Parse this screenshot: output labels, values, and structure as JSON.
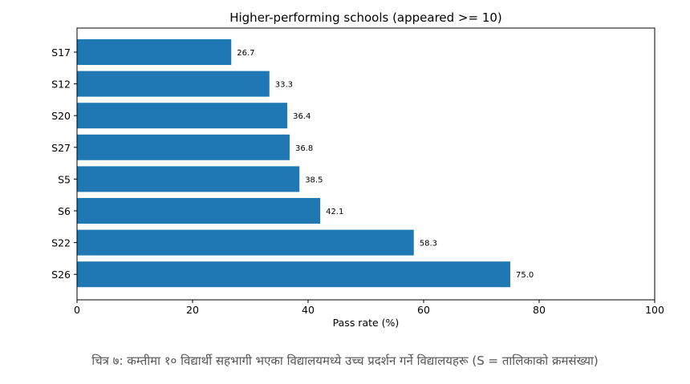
{
  "chart_data": {
    "type": "bar",
    "orientation": "horizontal",
    "title": "Higher-performing schools (appeared >= 10)",
    "xlabel": "Pass rate (%)",
    "ylabel": "",
    "xlim": [
      0,
      100
    ],
    "xticks": [
      0,
      20,
      40,
      60,
      80,
      100
    ],
    "categories": [
      "S17",
      "S12",
      "S20",
      "S27",
      "S5",
      "S6",
      "S22",
      "S26"
    ],
    "values": [
      26.7,
      33.3,
      36.4,
      36.8,
      38.5,
      42.1,
      58.3,
      75.0
    ],
    "value_labels": [
      "26.7",
      "33.3",
      "36.4",
      "36.8",
      "38.5",
      "42.1",
      "58.3",
      "75.0"
    ],
    "color": "#1f77b4",
    "grid": false
  },
  "caption": "चित्र ७: कम्तीमा १० विद्यार्थी सहभागी भएका विद्यालयमध्ये उच्च प्रदर्शन गर्ने विद्यालयहरू (S = तालिकाको क्रमसंख्या)"
}
